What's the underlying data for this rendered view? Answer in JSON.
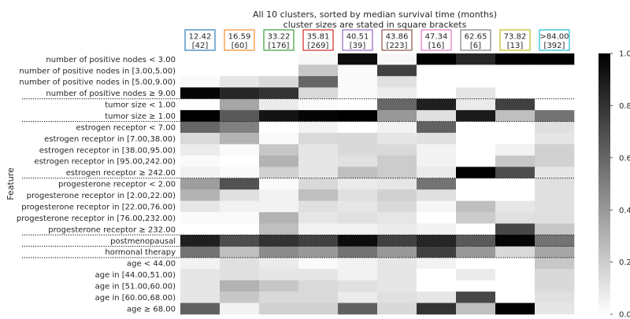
{
  "chart_data": {
    "type": "heatmap",
    "title": "All 10 clusters, sorted by median survival time (months)",
    "subtitle": "cluster sizes are stated in square brackets",
    "ylabel": "Feature",
    "clusters": [
      {
        "median": "12.42",
        "size": "[42]",
        "color": "#2b7fb8"
      },
      {
        "median": "16.59",
        "size": "[60]",
        "color": "#f28e2b"
      },
      {
        "median": "33.22",
        "size": "[176]",
        "color": "#3a9d3a"
      },
      {
        "median": "35.81",
        "size": "[269]",
        "color": "#d62728"
      },
      {
        "median": "40.51",
        "size": "[39]",
        "color": "#9467bd"
      },
      {
        "median": "43.86",
        "size": "[223]",
        "color": "#8c564b"
      },
      {
        "median": "47.34",
        "size": "[16]",
        "color": "#e377c2"
      },
      {
        "median": "62.65",
        "size": "[6]",
        "color": "#7f7f7f"
      },
      {
        "median": "73.82",
        "size": "[13]",
        "color": "#bcbd22"
      },
      {
        "median": ">84.00",
        "size": "[392]",
        "color": "#17becf"
      }
    ],
    "features": [
      "number of positive nodes < 3.00",
      "number of positive nodes in [3.00,5.00)",
      "number of positive nodes in [5.00,9.00)",
      "number of positive nodes ≥ 9.00",
      "tumor size < 1.00",
      "tumor size ≥ 1.00",
      "estrogen receptor < 7.00",
      "estrogen receptor in [7.00,38.00)",
      "estrogen receptor in [38.00,95.00)",
      "estrogen receptor in [95.00,242.00)",
      "estrogen receptor ≥ 242.00",
      "progesterone receptor < 2.00",
      "progesterone receptor in [2.00,22.00)",
      "progesterone receptor in [22.00,76.00)",
      "progesterone receptor in [76.00,232.00)",
      "progesterone receptor ≥ 232.00",
      "postmenopausal",
      "hormonal therapy",
      "age < 44.00",
      "age in [44.00,51.00)",
      "age in [51.00,60.00)",
      "age in [60.00,68.00)",
      "age ≥ 68.00"
    ],
    "values": [
      [
        0.0,
        0.0,
        0.0,
        0.03,
        0.95,
        0.03,
        1.0,
        0.85,
        1.0,
        1.0
      ],
      [
        0.0,
        0.0,
        0.0,
        0.22,
        0.02,
        0.75,
        0.0,
        0.0,
        0.0,
        0.0
      ],
      [
        0.02,
        0.1,
        0.15,
        0.6,
        0.02,
        0.12,
        0.0,
        0.0,
        0.0,
        0.0
      ],
      [
        0.98,
        0.85,
        0.8,
        0.15,
        0.02,
        0.07,
        0.0,
        0.1,
        0.0,
        0.0
      ],
      [
        0.0,
        0.35,
        0.08,
        0.02,
        0.0,
        0.6,
        0.88,
        0.08,
        0.75,
        0.0
      ],
      [
        1.0,
        0.65,
        0.92,
        0.98,
        1.0,
        0.4,
        0.12,
        0.9,
        0.25,
        0.55
      ],
      [
        0.6,
        0.5,
        0.0,
        0.05,
        0.0,
        0.05,
        0.62,
        0.0,
        0.0,
        0.12
      ],
      [
        0.15,
        0.3,
        0.02,
        0.15,
        0.15,
        0.1,
        0.12,
        0.0,
        0.0,
        0.1
      ],
      [
        0.08,
        0.02,
        0.22,
        0.1,
        0.15,
        0.15,
        0.05,
        0.0,
        0.05,
        0.18
      ],
      [
        0.02,
        0.0,
        0.3,
        0.1,
        0.12,
        0.2,
        0.05,
        0.0,
        0.22,
        0.18
      ],
      [
        0.05,
        0.02,
        0.18,
        0.1,
        0.25,
        0.2,
        0.08,
        1.0,
        0.7,
        0.1
      ],
      [
        0.38,
        0.68,
        0.02,
        0.15,
        0.08,
        0.1,
        0.55,
        0.0,
        0.0,
        0.12
      ],
      [
        0.3,
        0.12,
        0.05,
        0.25,
        0.12,
        0.18,
        0.12,
        0.0,
        0.0,
        0.12
      ],
      [
        0.1,
        0.05,
        0.05,
        0.12,
        0.1,
        0.15,
        0.03,
        0.25,
        0.1,
        0.12
      ],
      [
        0.02,
        0.02,
        0.3,
        0.1,
        0.12,
        0.1,
        0.0,
        0.2,
        0.12,
        0.12
      ],
      [
        0.0,
        0.0,
        0.25,
        0.05,
        0.05,
        0.08,
        0.05,
        0.0,
        0.72,
        0.22
      ],
      [
        0.88,
        0.7,
        0.8,
        0.75,
        0.95,
        0.75,
        0.85,
        0.65,
        0.98,
        0.55
      ],
      [
        0.55,
        0.25,
        0.45,
        0.4,
        0.55,
        0.4,
        0.75,
        0.4,
        0.15,
        0.35
      ],
      [
        0.05,
        0.12,
        0.08,
        0.02,
        0.05,
        0.1,
        0.05,
        0.0,
        0.0,
        0.22
      ],
      [
        0.1,
        0.12,
        0.1,
        0.1,
        0.05,
        0.1,
        0.0,
        0.08,
        0.0,
        0.15
      ],
      [
        0.1,
        0.3,
        0.22,
        0.15,
        0.12,
        0.1,
        0.0,
        0.0,
        0.0,
        0.15
      ],
      [
        0.1,
        0.22,
        0.15,
        0.15,
        0.08,
        0.12,
        0.1,
        0.72,
        0.0,
        0.12
      ],
      [
        0.62,
        0.05,
        0.18,
        0.18,
        0.62,
        0.15,
        0.8,
        0.25,
        1.0,
        0.1
      ]
    ],
    "group_separators_after_row": [
      3,
      5,
      10,
      15,
      16,
      17
    ],
    "colorbar": {
      "ticks": [
        "0.0",
        "0.2",
        "0.4",
        "0.6",
        "0.8",
        "1.0"
      ],
      "range": [
        0,
        1
      ]
    },
    "colorscale": [
      "#ffffff",
      "#000000"
    ]
  }
}
